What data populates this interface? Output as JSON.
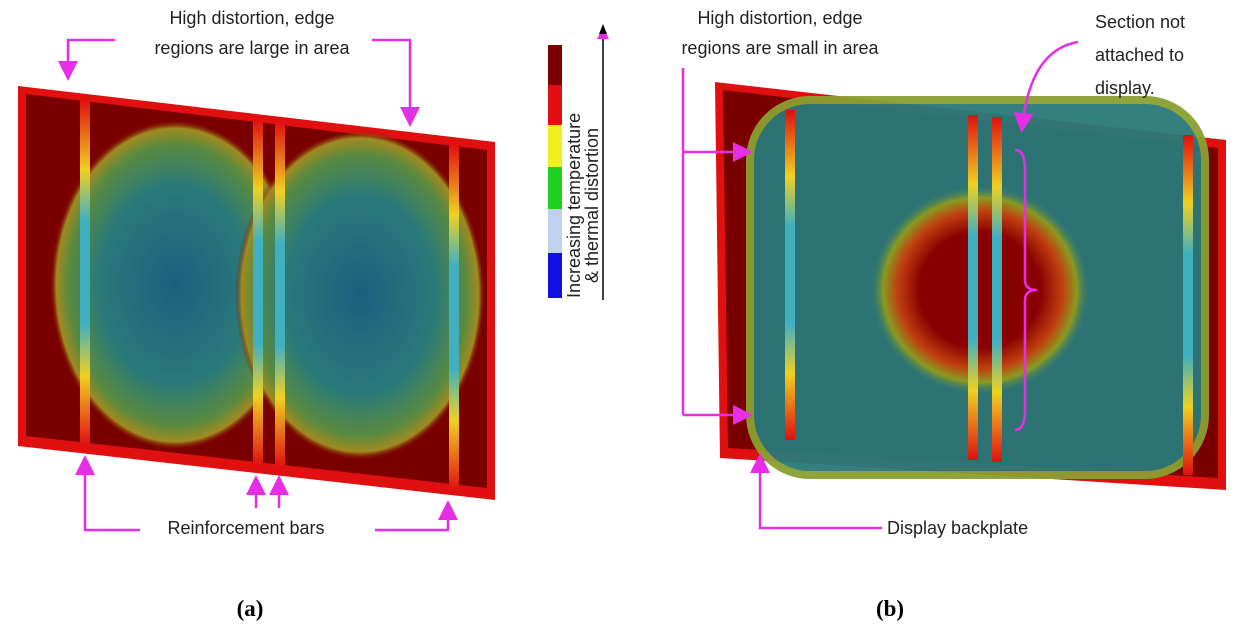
{
  "panels": [
    {
      "label": "(a)",
      "annotations": [
        {
          "lines": [
            "High distortion, edge",
            "regions are large in area"
          ]
        },
        {
          "lines": [
            "Reinforcement bars"
          ]
        }
      ]
    },
    {
      "label": "(b)",
      "annotations": [
        {
          "lines": [
            "High distortion, edge",
            "regions are small in area"
          ]
        },
        {
          "lines": [
            "Section not",
            "attached to",
            "display."
          ]
        },
        {
          "lines": [
            "Display backplate"
          ]
        }
      ]
    }
  ],
  "legend": {
    "lines": [
      "Increasing temperature",
      "& thermal distortion"
    ]
  }
}
